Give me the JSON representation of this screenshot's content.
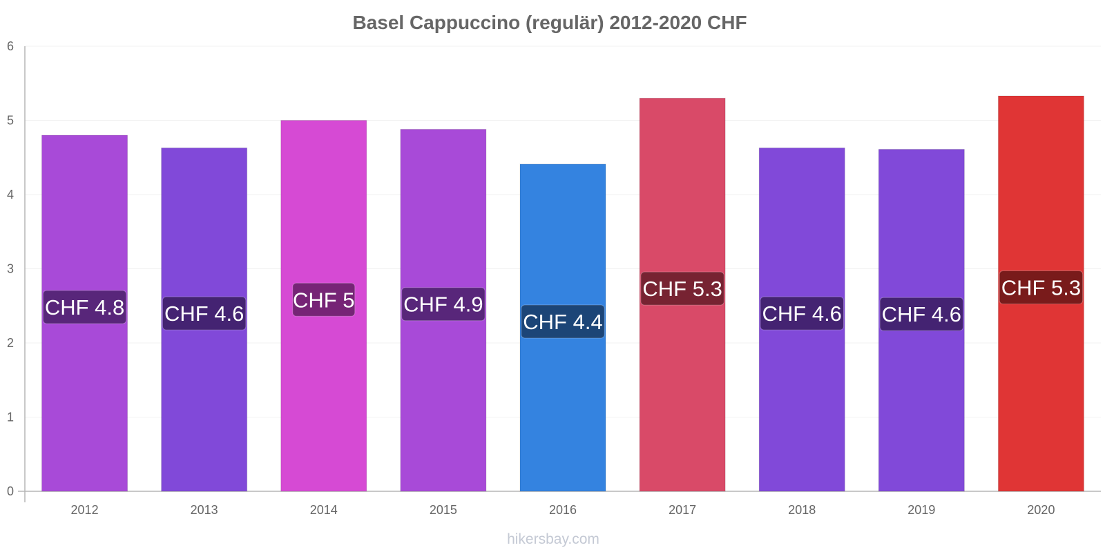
{
  "chart_data": {
    "type": "bar",
    "title": "Basel Cappuccino (regulär) 2012-2020 CHF",
    "xlabel": "",
    "ylabel": "",
    "ylim": [
      0,
      6
    ],
    "yticks": [
      "0",
      "1",
      "2",
      "3",
      "4",
      "5",
      "6"
    ],
    "grid": true,
    "categories": [
      "2012",
      "2013",
      "2014",
      "2015",
      "2016",
      "2017",
      "2018",
      "2019",
      "2020"
    ],
    "values": [
      4.8,
      4.63,
      5.0,
      4.88,
      4.41,
      5.3,
      4.63,
      4.61,
      5.33
    ],
    "data_labels": [
      "CHF 4.8",
      "CHF 4.6",
      "CHF 5",
      "CHF 4.9",
      "CHF 4.4",
      "CHF 5.3",
      "CHF 4.6",
      "CHF 4.6",
      "CHF 5.3"
    ],
    "bar_colors": [
      "#a84ad8",
      "#8149d9",
      "#d64ad4",
      "#a84ad8",
      "#3483e0",
      "#d94a68",
      "#8149d9",
      "#8149d9",
      "#e03535"
    ],
    "label_colors": [
      "#4f2270",
      "#3d1f66",
      "#6b206c",
      "#4f2270",
      "#1a3e6b",
      "#6b1f2c",
      "#3d1f66",
      "#3d1f66",
      "#6e1818"
    ]
  },
  "watermark": "hikersbay.com"
}
